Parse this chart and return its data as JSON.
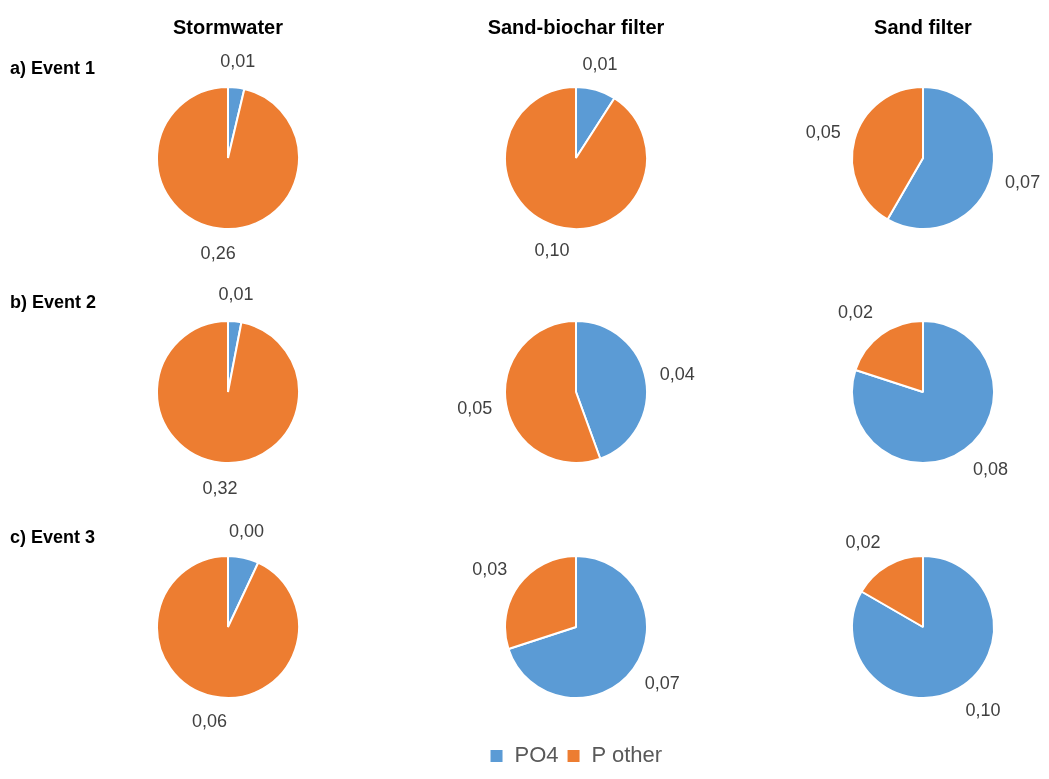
{
  "chart_data": [
    {
      "type": "pie",
      "title": "Stormwater",
      "annotations": [
        "a) Event 1"
      ],
      "values": [
        0.01,
        0.26
      ],
      "value_labels": [
        "0,01",
        "0,26"
      ],
      "colors": [
        "#5b9bd5",
        "#ed7d31"
      ]
    },
    {
      "type": "pie",
      "title": "Sand-biochar filter",
      "values": [
        0.01,
        0.1
      ],
      "value_labels": [
        "0,01",
        "0,10"
      ],
      "colors": [
        "#5b9bd5",
        "#ed7d31"
      ]
    },
    {
      "type": "pie",
      "title": "Sand filter",
      "values": [
        0.07,
        0.05
      ],
      "value_labels": [
        "0,07",
        "0,05"
      ],
      "colors": [
        "#5b9bd5",
        "#ed7d31"
      ]
    },
    {
      "type": "pie",
      "annotations": [
        "b) Event 2"
      ],
      "values": [
        0.01,
        0.32
      ],
      "value_labels": [
        "0,01",
        "0,32"
      ],
      "colors": [
        "#5b9bd5",
        "#ed7d31"
      ]
    },
    {
      "type": "pie",
      "values": [
        0.04,
        0.05
      ],
      "value_labels": [
        "0,04",
        "0,05"
      ],
      "colors": [
        "#5b9bd5",
        "#ed7d31"
      ]
    },
    {
      "type": "pie",
      "values": [
        0.08,
        0.02
      ],
      "value_labels": [
        "0,08",
        "0,02"
      ],
      "colors": [
        "#5b9bd5",
        "#ed7d31"
      ]
    },
    {
      "type": "pie",
      "annotations": [
        "c) Event 3"
      ],
      "values": [
        0.0045,
        0.06
      ],
      "value_labels": [
        "0,00",
        "0,06"
      ],
      "colors": [
        "#5b9bd5",
        "#ed7d31"
      ]
    },
    {
      "type": "pie",
      "categories": [
        "PO4",
        "P other"
      ],
      "values": [
        0.07,
        0.03
      ],
      "value_labels": [
        "0,07",
        "0,03"
      ],
      "colors": [
        "#5b9bd5",
        "#ed7d31"
      ],
      "legend": "bottom"
    },
    {
      "type": "pie",
      "values": [
        0.1,
        0.02
      ],
      "value_labels": [
        "0,10",
        "0,02"
      ],
      "colors": [
        "#5b9bd5",
        "#ed7d31"
      ]
    }
  ]
}
